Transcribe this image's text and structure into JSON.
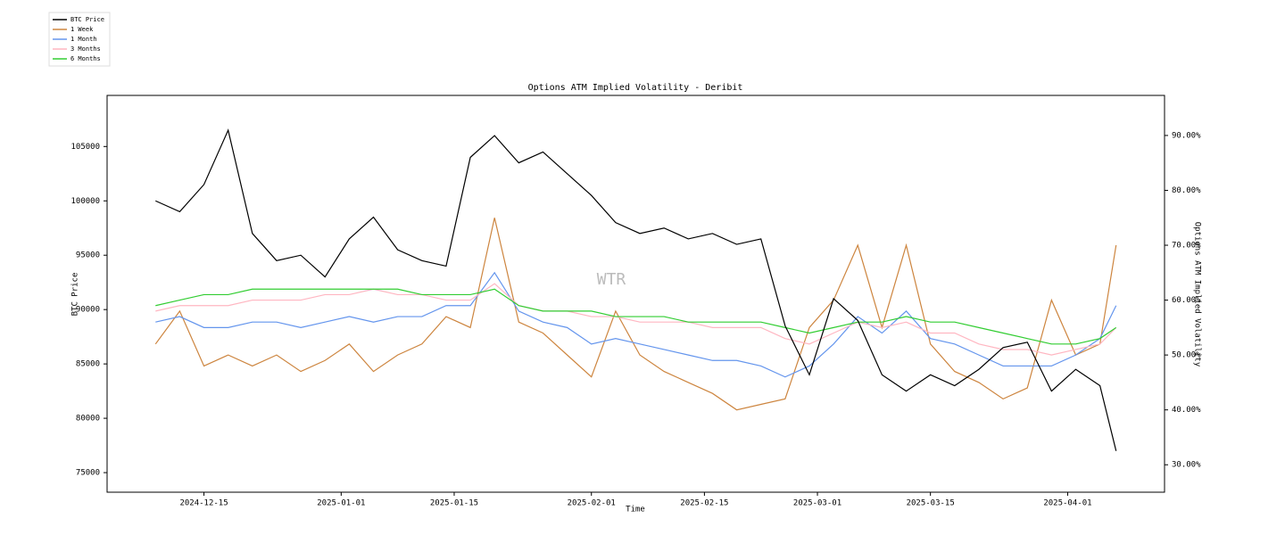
{
  "chart_data": {
    "type": "line",
    "title": "Options ATM Implied Volatility - Deribit",
    "xlabel": "Time",
    "ylabel": "BTC Price",
    "y2label": "Options ATM Implied Volatility",
    "annotation": "WTR",
    "legend": "upper left",
    "x": [
      "2024-12-09",
      "2024-12-12",
      "2024-12-15",
      "2024-12-18",
      "2024-12-21",
      "2024-12-24",
      "2024-12-27",
      "2024-12-30",
      "2025-01-02",
      "2025-01-05",
      "2025-01-08",
      "2025-01-11",
      "2025-01-14",
      "2025-01-17",
      "2025-01-20",
      "2025-01-23",
      "2025-01-26",
      "2025-01-29",
      "2025-02-01",
      "2025-02-04",
      "2025-02-07",
      "2025-02-10",
      "2025-02-13",
      "2025-02-16",
      "2025-02-19",
      "2025-02-22",
      "2025-02-25",
      "2025-02-28",
      "2025-03-03",
      "2025-03-06",
      "2025-03-09",
      "2025-03-12",
      "2025-03-15",
      "2025-03-18",
      "2025-03-21",
      "2025-03-24",
      "2025-03-27",
      "2025-03-30",
      "2025-04-02",
      "2025-04-05",
      "2025-04-07"
    ],
    "xlim": [
      "2024-12-03",
      "2025-04-13"
    ],
    "xticks": [
      "2024-12-15",
      "2025-01-01",
      "2025-01-15",
      "2025-02-01",
      "2025-02-15",
      "2025-03-01",
      "2025-03-15",
      "2025-04-01"
    ],
    "ylim": [
      73200,
      109700
    ],
    "yticks": [
      75000,
      80000,
      85000,
      90000,
      95000,
      100000,
      105000
    ],
    "y2lim": [
      25,
      97.3
    ],
    "y2ticks": [
      {
        "value": 30,
        "label": "30.00%"
      },
      {
        "value": 40,
        "label": "40.00%"
      },
      {
        "value": 50,
        "label": "50.00%"
      },
      {
        "value": 60,
        "label": "60.00%"
      },
      {
        "value": 70,
        "label": "70.00%"
      },
      {
        "value": 80,
        "label": "80.00%"
      },
      {
        "value": 90,
        "label": "90.00%"
      }
    ],
    "series": [
      {
        "name": "BTC Price",
        "color": "#000000",
        "axis": "y",
        "values": [
          100000,
          99000,
          101500,
          106500,
          97000,
          94500,
          95000,
          93000,
          96500,
          98500,
          95500,
          94500,
          94000,
          104000,
          106000,
          103500,
          104500,
          102500,
          100500,
          98000,
          97000,
          97500,
          96500,
          97000,
          96000,
          96500,
          88500,
          84000,
          91000,
          89000,
          84000,
          82500,
          84000,
          83000,
          84500,
          86500,
          87000,
          82500,
          84500,
          83000,
          77000
        ]
      },
      {
        "name": "1 Week",
        "color": "#cd853f",
        "axis": "y2",
        "values": [
          52,
          58,
          48,
          50,
          48,
          50,
          47,
          49,
          52,
          47,
          50,
          52,
          57,
          55,
          75,
          56,
          54,
          50,
          46,
          58,
          50,
          47,
          45,
          43,
          40,
          41,
          42,
          55,
          60,
          70,
          55,
          70,
          52,
          47,
          45,
          42,
          44,
          60,
          50,
          52,
          70
        ]
      },
      {
        "name": "1 Month",
        "color": "#6495ed",
        "axis": "y2",
        "values": [
          56,
          57,
          55,
          55,
          56,
          56,
          55,
          56,
          57,
          56,
          57,
          57,
          59,
          59,
          65,
          58,
          56,
          55,
          52,
          53,
          52,
          51,
          50,
          49,
          49,
          48,
          46,
          48,
          52,
          57,
          54,
          58,
          53,
          52,
          50,
          48,
          48,
          48,
          50,
          53,
          59
        ]
      },
      {
        "name": "3 Months",
        "color": "#ffb6c1",
        "axis": "y2",
        "values": [
          58,
          59,
          59,
          59,
          60,
          60,
          60,
          61,
          61,
          62,
          61,
          61,
          60,
          60,
          63,
          59,
          58,
          58,
          57,
          57,
          56,
          56,
          56,
          55,
          55,
          55,
          53,
          52,
          54,
          56,
          55,
          56,
          54,
          54,
          52,
          51,
          51,
          50,
          51,
          52,
          55
        ]
      },
      {
        "name": "6 Months",
        "color": "#32cd32",
        "axis": "y2",
        "values": [
          59,
          60,
          61,
          61,
          62,
          62,
          62,
          62,
          62,
          62,
          62,
          61,
          61,
          61,
          62,
          59,
          58,
          58,
          58,
          57,
          57,
          57,
          56,
          56,
          56,
          56,
          55,
          54,
          55,
          56,
          56,
          57,
          56,
          56,
          55,
          54,
          53,
          52,
          52,
          53,
          55
        ]
      }
    ]
  }
}
